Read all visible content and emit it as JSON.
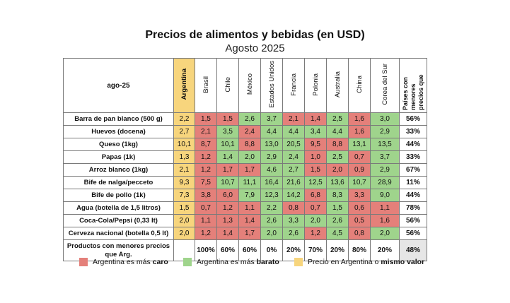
{
  "title": "Precios de alimentos y bebidas (en USD)",
  "subtitle": "Agosto 2025",
  "colors": {
    "caro": "#e4807a",
    "barato": "#9fd48c",
    "igual": "#f7d57d"
  },
  "table": {
    "corner_label": "ago-25",
    "base_country": "Argentina",
    "countries": [
      "Brasil",
      "Chile",
      "México",
      "Estados Unidos",
      "Francia",
      "Polonia",
      "Australia",
      "China",
      "Corea del Sur"
    ],
    "share_header": "Países con menores precios que",
    "rows": [
      {
        "label": "Barra de pan blanco (500 g)",
        "arg": "2,2",
        "values": [
          "1,5",
          "1,5",
          "2,6",
          "3,7",
          "2,1",
          "1,4",
          "2,5",
          "1,6",
          "3,0"
        ],
        "status": [
          "red",
          "red",
          "green",
          "green",
          "red",
          "red",
          "green",
          "red",
          "green"
        ],
        "share": "56%"
      },
      {
        "label": "Huevos (docena)",
        "arg": "2,7",
        "values": [
          "2,1",
          "3,5",
          "2,4",
          "4,4",
          "4,4",
          "3,4",
          "4,4",
          "1,6",
          "2,9"
        ],
        "status": [
          "red",
          "green",
          "red",
          "green",
          "green",
          "green",
          "green",
          "red",
          "green"
        ],
        "share": "33%"
      },
      {
        "label": "Queso (1kg)",
        "arg": "10,1",
        "values": [
          "8,7",
          "10,1",
          "8,8",
          "13,0",
          "20,5",
          "9,5",
          "8,8",
          "13,1",
          "13,5"
        ],
        "status": [
          "red",
          "green",
          "red",
          "green",
          "green",
          "red",
          "red",
          "green",
          "green"
        ],
        "share": "44%"
      },
      {
        "label": "Papas (1k)",
        "arg": "1,3",
        "values": [
          "1,2",
          "1,4",
          "2,0",
          "2,9",
          "2,4",
          "1,0",
          "2,5",
          "0,7",
          "3,7"
        ],
        "status": [
          "red",
          "green",
          "green",
          "green",
          "green",
          "red",
          "green",
          "red",
          "green"
        ],
        "share": "33%"
      },
      {
        "label": "Arroz blanco (1kg)",
        "arg": "2,1",
        "values": [
          "1,2",
          "1,7",
          "1,7",
          "4,6",
          "2,7",
          "1,5",
          "2,0",
          "0,9",
          "2,9"
        ],
        "status": [
          "red",
          "red",
          "red",
          "green",
          "green",
          "red",
          "red",
          "red",
          "green"
        ],
        "share": "67%"
      },
      {
        "label": "Bife de nalga/pecceto",
        "arg": "9,3",
        "values": [
          "7,5",
          "10,7",
          "11,1",
          "16,4",
          "21,6",
          "12,5",
          "13,6",
          "10,7",
          "28,9"
        ],
        "status": [
          "red",
          "green",
          "green",
          "green",
          "green",
          "green",
          "green",
          "green",
          "green"
        ],
        "share": "11%"
      },
      {
        "label": "Bife de pollo (1k)",
        "arg": "7,3",
        "values": [
          "3,8",
          "6,0",
          "7,9",
          "12,3",
          "14,2",
          "6,8",
          "8,3",
          "3,3",
          "9,0"
        ],
        "status": [
          "red",
          "red",
          "green",
          "green",
          "green",
          "red",
          "green",
          "red",
          "green"
        ],
        "share": "44%"
      },
      {
        "label": "Agua (botella de 1,5 litros)",
        "arg": "1,5",
        "values": [
          "0,7",
          "1,2",
          "1,1",
          "2,2",
          "0,8",
          "0,7",
          "1,5",
          "0,6",
          "1,1"
        ],
        "status": [
          "red",
          "red",
          "red",
          "green",
          "red",
          "red",
          "green",
          "red",
          "red"
        ],
        "share": "78%"
      },
      {
        "label": "Coca-Cola/Pepsi (0,33 lt)",
        "arg": "2,0",
        "values": [
          "1,1",
          "1,3",
          "1,4",
          "2,6",
          "3,3",
          "2,0",
          "2,6",
          "0,5",
          "1,6"
        ],
        "status": [
          "red",
          "red",
          "red",
          "green",
          "green",
          "green",
          "green",
          "red",
          "red"
        ],
        "share": "56%"
      },
      {
        "label": "Cerveza nacional (botella 0,5 lt)",
        "arg": "2,0",
        "values": [
          "1,2",
          "1,4",
          "1,7",
          "2,0",
          "2,6",
          "1,2",
          "4,5",
          "0,8",
          "2,0"
        ],
        "status": [
          "red",
          "red",
          "red",
          "green",
          "green",
          "red",
          "green",
          "red",
          "green"
        ],
        "share": "56%"
      }
    ],
    "totals": {
      "label": "Productos con menores precios que Arg.",
      "values": [
        "100%",
        "60%",
        "60%",
        "0%",
        "20%",
        "70%",
        "20%",
        "80%",
        "20%"
      ],
      "final": "48%"
    }
  },
  "legend": [
    {
      "color_key": "caro",
      "text": "Argentina es más ",
      "bold": "caro"
    },
    {
      "color_key": "barato",
      "text": "Argentina es más ",
      "bold": "barato"
    },
    {
      "color_key": "igual",
      "text": "Precio en Argentina o ",
      "bold": "mismo valor"
    }
  ]
}
